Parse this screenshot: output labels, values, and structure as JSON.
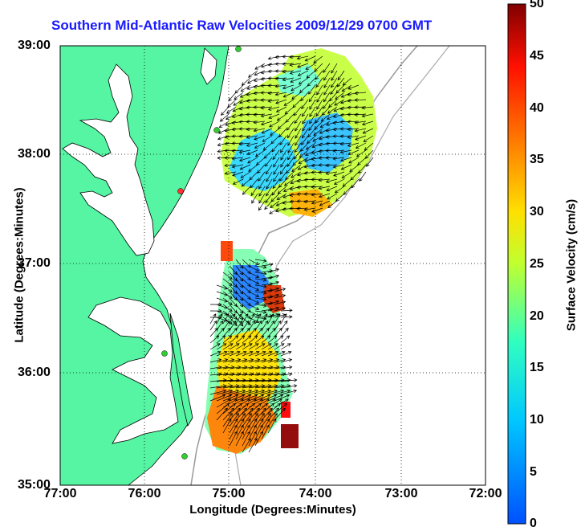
{
  "title": "Southern Mid-Atlantic Raw Velocities 2009/12/29 0700 GMT",
  "x_axis": {
    "label": "Longitude (Degrees:Minutes)",
    "ticks": [
      "77:00",
      "76:00",
      "75:00",
      "74:00",
      "73:00",
      "72:00"
    ]
  },
  "y_axis": {
    "label": "Latitude (Degrees:Minutes)",
    "ticks": [
      "39:00",
      "38:00",
      "37:00",
      "36:00",
      "35:00"
    ]
  },
  "colorbar": {
    "label": "Surface Velocity (cm/s)",
    "ticks": [
      "0",
      "5",
      "10",
      "15",
      "20",
      "25",
      "30",
      "35",
      "40",
      "45",
      "50"
    ],
    "min": 0,
    "max": 50
  },
  "colors": {
    "land": "#55f5a3",
    "title": "#1a1aff"
  }
}
